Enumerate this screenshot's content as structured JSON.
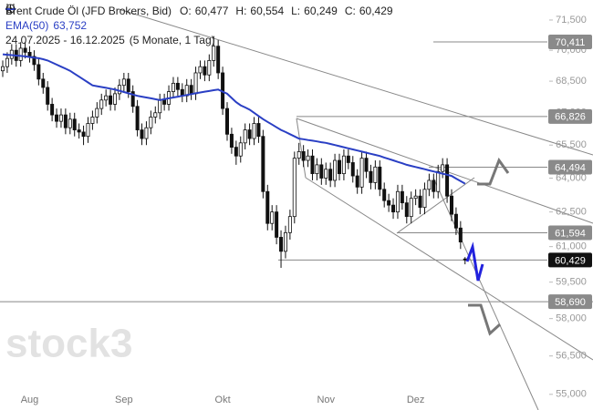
{
  "chart_data": {
    "type": "candlestick",
    "log_scale": true,
    "ylim": [
      54.4,
      72.51
    ],
    "yticks": [
      {
        "value": 71.5,
        "label": "71,500"
      },
      {
        "value": 70,
        "label": "70,000"
      },
      {
        "value": 68.5,
        "label": "68,500"
      },
      {
        "value": 67,
        "label": "67,000"
      },
      {
        "value": 65.5,
        "label": "65,500"
      },
      {
        "value": 64,
        "label": "64,000"
      },
      {
        "value": 62.5,
        "label": "62,500"
      },
      {
        "value": 61,
        "label": "61,000"
      },
      {
        "value": 59.5,
        "label": "59,500"
      },
      {
        "value": 58,
        "label": "58,000"
      },
      {
        "value": 56.5,
        "label": "56,500"
      },
      {
        "value": 55,
        "label": "55,000"
      }
    ],
    "period": "24.07.2025 - 16.12.2025",
    "period_note": "(5 Monate, 1 Tag)",
    "watermark": "stock3",
    "stats": [
      {
        "key": "O:",
        "value": 60.477,
        "label": "60,477"
      },
      {
        "key": "H:",
        "value": 60.554,
        "label": "60,554"
      },
      {
        "key": "L:",
        "value": 60.249,
        "label": "60,249"
      },
      {
        "key": "C:",
        "value": 60.429,
        "label": "60,429"
      }
    ],
    "levels": [
      {
        "value": 70.411,
        "label": "70,411",
        "color": "#8a8a8a"
      },
      {
        "value": 66.826,
        "label": "66,826",
        "color": "#8a8a8a"
      },
      {
        "value": 64.494,
        "label": "64,494",
        "color": "#8a8a8a"
      },
      {
        "value": 61.594,
        "label": "61,594",
        "color": "#8a8a8a"
      },
      {
        "value": 60.429,
        "label": "60,429",
        "color": "#111111"
      },
      {
        "value": 58.69,
        "label": "58,690",
        "color": "#8a8a8a"
      }
    ],
    "categories": [
      null,
      null,
      null,
      null,
      null,
      null,
      "Aug",
      null,
      null,
      null,
      null,
      null,
      null,
      null,
      null,
      null,
      null,
      null,
      null,
      null,
      null,
      null,
      null,
      null,
      null,
      null,
      null,
      "Sep",
      null,
      null,
      null,
      null,
      null,
      null,
      null,
      null,
      null,
      null,
      null,
      null,
      null,
      null,
      null,
      null,
      null,
      null,
      null,
      null,
      null,
      "Okt",
      null,
      null,
      null,
      null,
      null,
      null,
      null,
      null,
      null,
      null,
      null,
      null,
      null,
      null,
      null,
      null,
      null,
      null,
      null,
      null,
      null,
      null,
      "Nov",
      null,
      null,
      null,
      null,
      null,
      null,
      null,
      null,
      null,
      null,
      null,
      null,
      null,
      null,
      null,
      null,
      null,
      null,
      null,
      "Dez",
      null,
      null,
      null,
      null,
      null,
      null,
      null,
      null,
      null,
      null,
      null
    ],
    "series": [
      {
        "name": "Brent Crude Öl (JFD Brokers, Bid)",
        "color": "#111111",
        "ohlc": [
          [
            69.0,
            69.5,
            68.7,
            69.2
          ],
          [
            69.2,
            69.9,
            68.9,
            69.6
          ],
          [
            69.6,
            70.3,
            69.3,
            70.0
          ],
          [
            70.0,
            70.3,
            69.2,
            69.5
          ],
          [
            69.5,
            70.4,
            69.2,
            70.1
          ],
          [
            70.1,
            70.4,
            69.6,
            69.9
          ],
          [
            69.9,
            70.2,
            69.4,
            69.7
          ],
          [
            69.7,
            70.0,
            69.0,
            69.3
          ],
          [
            69.3,
            69.6,
            68.3,
            68.6
          ],
          [
            68.6,
            68.9,
            67.9,
            68.2
          ],
          [
            68.2,
            68.5,
            67.1,
            67.4
          ],
          [
            67.4,
            67.7,
            66.6,
            66.9
          ],
          [
            66.9,
            67.2,
            66.3,
            66.6
          ],
          [
            66.6,
            67.2,
            66.3,
            66.9
          ],
          [
            66.9,
            67.2,
            66.0,
            66.3
          ],
          [
            66.3,
            67.0,
            66.0,
            66.7
          ],
          [
            66.7,
            67.0,
            65.9,
            66.2
          ],
          [
            66.2,
            66.5,
            65.8,
            66.1
          ],
          [
            66.1,
            66.4,
            65.5,
            65.9
          ],
          [
            65.9,
            66.8,
            65.6,
            66.5
          ],
          [
            66.5,
            67.1,
            66.2,
            66.8
          ],
          [
            66.8,
            67.5,
            66.5,
            67.2
          ],
          [
            67.2,
            67.9,
            66.9,
            67.6
          ],
          [
            67.6,
            68.1,
            67.3,
            67.8
          ],
          [
            67.8,
            68.1,
            67.1,
            67.4
          ],
          [
            67.4,
            68.2,
            67.1,
            67.9
          ],
          [
            67.9,
            68.6,
            67.6,
            68.3
          ],
          [
            68.3,
            68.9,
            68.0,
            68.6
          ],
          [
            68.6,
            68.9,
            67.7,
            68.0
          ],
          [
            68.0,
            68.3,
            67.0,
            67.3
          ],
          [
            67.3,
            67.6,
            65.9,
            66.2
          ],
          [
            66.2,
            66.5,
            65.5,
            65.8
          ],
          [
            65.8,
            66.6,
            65.5,
            66.3
          ],
          [
            66.3,
            67.1,
            66.0,
            66.8
          ],
          [
            66.8,
            67.3,
            66.5,
            67.0
          ],
          [
            67.0,
            67.9,
            66.7,
            67.6
          ],
          [
            67.6,
            67.9,
            67.1,
            67.4
          ],
          [
            67.4,
            68.3,
            67.1,
            68.0
          ],
          [
            68.0,
            68.7,
            67.7,
            68.4
          ],
          [
            68.4,
            68.7,
            67.8,
            68.1
          ],
          [
            68.1,
            68.4,
            67.5,
            67.8
          ],
          [
            67.8,
            68.6,
            67.5,
            68.3
          ],
          [
            68.3,
            68.6,
            67.6,
            67.9
          ],
          [
            67.9,
            69.2,
            67.6,
            68.9
          ],
          [
            68.9,
            69.5,
            68.6,
            69.2
          ],
          [
            69.2,
            69.5,
            68.5,
            68.8
          ],
          [
            68.8,
            69.8,
            68.5,
            69.5
          ],
          [
            69.5,
            70.7,
            69.2,
            70.2
          ],
          [
            70.2,
            70.5,
            68.6,
            68.9
          ],
          [
            68.9,
            69.2,
            66.9,
            67.2
          ],
          [
            67.2,
            67.5,
            65.7,
            66.0
          ],
          [
            66.0,
            66.3,
            65.1,
            65.4
          ],
          [
            65.4,
            65.7,
            64.6,
            65.0
          ],
          [
            65.0,
            65.9,
            64.7,
            65.6
          ],
          [
            65.6,
            66.5,
            65.3,
            66.2
          ],
          [
            66.2,
            66.5,
            65.5,
            65.8
          ],
          [
            65.8,
            66.8,
            65.5,
            66.5
          ],
          [
            66.5,
            66.8,
            65.6,
            65.9
          ],
          [
            65.9,
            66.2,
            63.1,
            63.4
          ],
          [
            63.4,
            63.7,
            61.7,
            62.0
          ],
          [
            62.0,
            62.8,
            61.7,
            62.5
          ],
          [
            62.5,
            62.8,
            61.1,
            61.4
          ],
          [
            61.4,
            61.7,
            60.1,
            60.8
          ],
          [
            60.8,
            61.9,
            60.5,
            61.6
          ],
          [
            61.6,
            62.6,
            61.3,
            62.3
          ],
          [
            62.3,
            65.2,
            62.0,
            64.9
          ],
          [
            64.9,
            65.6,
            64.6,
            65.2
          ],
          [
            65.2,
            65.5,
            64.5,
            64.8
          ],
          [
            64.8,
            65.3,
            64.5,
            65.0
          ],
          [
            65.0,
            65.3,
            63.9,
            64.2
          ],
          [
            64.2,
            64.9,
            63.9,
            64.6
          ],
          [
            64.6,
            64.9,
            63.7,
            64.0
          ],
          [
            64.0,
            64.7,
            63.7,
            64.4
          ],
          [
            64.4,
            64.7,
            63.6,
            63.9
          ],
          [
            63.9,
            65.1,
            63.6,
            64.8
          ],
          [
            64.8,
            65.1,
            63.9,
            64.2
          ],
          [
            64.2,
            65.3,
            63.9,
            65.0
          ],
          [
            65.0,
            65.3,
            64.4,
            64.7
          ],
          [
            64.7,
            65.0,
            63.8,
            64.1
          ],
          [
            64.1,
            64.4,
            63.3,
            63.6
          ],
          [
            63.6,
            65.2,
            63.3,
            64.9
          ],
          [
            64.9,
            65.2,
            64.0,
            64.3
          ],
          [
            64.3,
            64.6,
            63.5,
            63.8
          ],
          [
            63.8,
            64.8,
            63.5,
            64.5
          ],
          [
            64.5,
            64.8,
            63.2,
            63.5
          ],
          [
            63.5,
            63.8,
            62.7,
            63.0
          ],
          [
            63.0,
            63.3,
            62.5,
            62.8
          ],
          [
            62.8,
            63.1,
            62.2,
            62.5
          ],
          [
            62.5,
            63.7,
            62.2,
            63.4
          ],
          [
            63.4,
            63.7,
            62.6,
            62.9
          ],
          [
            62.9,
            63.2,
            62.0,
            62.3
          ],
          [
            62.3,
            63.4,
            62.0,
            63.1
          ],
          [
            63.1,
            63.5,
            62.8,
            63.2
          ],
          [
            63.2,
            63.5,
            62.4,
            62.7
          ],
          [
            62.7,
            63.8,
            62.4,
            63.5
          ],
          [
            63.5,
            64.2,
            63.2,
            63.9
          ],
          [
            63.9,
            64.2,
            63.1,
            63.4
          ],
          [
            63.4,
            64.6,
            63.1,
            64.3
          ],
          [
            64.3,
            64.9,
            64.0,
            64.6
          ],
          [
            64.6,
            64.9,
            62.9,
            63.2
          ],
          [
            63.2,
            63.5,
            62.1,
            62.4
          ],
          [
            62.4,
            62.7,
            61.5,
            61.8
          ],
          [
            61.8,
            62.1,
            60.9,
            61.2
          ],
          [
            60.477,
            60.554,
            60.249,
            60.429
          ]
        ]
      },
      {
        "name": "EMA(50)",
        "color": "#2a3fc4",
        "stats": [
          {
            "value": 63.752,
            "label": "63,752"
          }
        ],
        "values": [
          69.8,
          69.78,
          69.76,
          69.74,
          69.72,
          69.7,
          69.67,
          69.64,
          69.61,
          69.56,
          69.5,
          69.4,
          69.3,
          69.2,
          69.1,
          69.0,
          68.86,
          68.72,
          68.58,
          68.44,
          68.3,
          68.26,
          68.22,
          68.18,
          68.14,
          68.1,
          68.04,
          67.98,
          67.92,
          67.86,
          67.8,
          67.76,
          67.72,
          67.68,
          67.64,
          67.6,
          67.64,
          67.68,
          67.72,
          67.76,
          67.8,
          67.84,
          67.88,
          67.92,
          67.96,
          68.0,
          68.03,
          68.07,
          68.1,
          68.0,
          67.9,
          67.7,
          67.5,
          67.35,
          67.25,
          67.15,
          67.0,
          66.85,
          66.7,
          66.57,
          66.45,
          66.32,
          66.2,
          66.1,
          66.0,
          65.9,
          65.8,
          65.77,
          65.73,
          65.7,
          65.67,
          65.63,
          65.6,
          65.55,
          65.5,
          65.45,
          65.4,
          65.35,
          65.3,
          65.25,
          65.2,
          65.15,
          65.1,
          65.05,
          65.0,
          64.93,
          64.87,
          64.8,
          64.73,
          64.67,
          64.6,
          64.55,
          64.5,
          64.45,
          64.4,
          64.35,
          64.3,
          64.25,
          64.2,
          64.15,
          64.1,
          63.98,
          63.87,
          63.752
        ]
      }
    ]
  }
}
